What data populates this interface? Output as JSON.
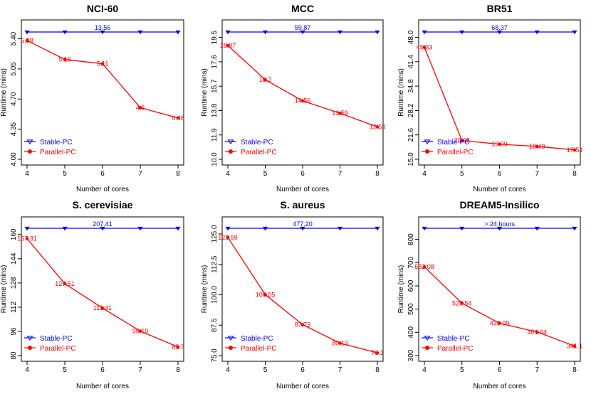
{
  "colors": {
    "stable": "#0000ff",
    "parallel": "#ff0000",
    "axis": "#000000"
  },
  "chart_data": [
    {
      "type": "line",
      "title": "NCI-60",
      "xlabel": "Number of cores",
      "ylabel": "Runtime (mins)",
      "x": [
        4,
        5,
        6,
        7,
        8
      ],
      "yticks": [
        "4.00",
        "4.35",
        "4.70",
        "5.05",
        "5.40"
      ],
      "ylim": [
        4.0,
        5.52
      ],
      "stable_value": 13.56,
      "stable_label": "13.56",
      "series": [
        {
          "name": "Parallel-PC",
          "values": [
            5.38,
            5.16,
            5.11,
            4.6,
            4.48
          ],
          "labels": [
            "5.38",
            "5.16",
            "5.11",
            "4.6",
            "4.48"
          ]
        }
      ],
      "legend": [
        "Stable-PC",
        "Parallel-PC"
      ],
      "legend_position": "bottom-left"
    },
    {
      "type": "line",
      "title": "MCC",
      "xlabel": "Number of cores",
      "ylabel": "Runtime (mins)",
      "x": [
        4,
        5,
        6,
        7,
        8
      ],
      "yticks": [
        "10.0",
        "11.9",
        "13.8",
        "15.7",
        "17.6",
        "19.5"
      ],
      "ylim": [
        10.0,
        20.2
      ],
      "stable_value": 59.87,
      "stable_label": "59.87",
      "series": [
        {
          "name": "Parallel-PC",
          "values": [
            18.87,
            16.2,
            14.56,
            13.59,
            12.53
          ],
          "labels": [
            "18.87",
            "16.2",
            "14.56",
            "13.59",
            "12.53"
          ]
        }
      ],
      "legend": [
        "Stable-PC",
        "Parallel-PC"
      ],
      "legend_position": "bottom-left"
    },
    {
      "type": "line",
      "title": "BR51",
      "xlabel": "Number of cores",
      "ylabel": "Runtime (mins)",
      "x": [
        4,
        5,
        6,
        7,
        8
      ],
      "yticks": [
        "15.0",
        "21.6",
        "28.2",
        "34.8",
        "41.4",
        "48.0"
      ],
      "ylim": [
        15.0,
        50.4
      ],
      "stable_value": 68.37,
      "stable_label": "68.37",
      "series": [
        {
          "name": "Parallel-PC",
          "values": [
            45.33,
            20.08,
            19.09,
            18.49,
            17.54
          ],
          "labels": [
            "45.33",
            "20.08",
            "19.09",
            "18.49",
            "17.54"
          ]
        }
      ],
      "legend": [
        "Stable-PC",
        "Parallel-PC"
      ],
      "legend_position": "bottom-left"
    },
    {
      "type": "line",
      "title": "S. cerevisiae",
      "xlabel": "Number of cores",
      "ylabel": "Runtime (mins)",
      "x": [
        4,
        5,
        6,
        7,
        8
      ],
      "yticks": [
        "80",
        "96",
        "112",
        "128",
        "144",
        "160"
      ],
      "ylim": [
        80,
        166
      ],
      "stable_value": 207.41,
      "stable_label": "207.41",
      "series": [
        {
          "name": "Parallel-PC",
          "values": [
            157.31,
            127.51,
            111.41,
            96.19,
            85.7
          ],
          "labels": [
            "157.31",
            "127.51",
            "111.41",
            "96.19",
            "85.7"
          ]
        }
      ],
      "legend": [
        "Stable-PC",
        "Parallel-PC"
      ],
      "legend_position": "bottom-left"
    },
    {
      "type": "line",
      "title": "S. aureus",
      "xlabel": "Number of cores",
      "ylabel": "Runtime (mins)",
      "x": [
        4,
        5,
        6,
        7,
        8
      ],
      "yticks": [
        "75.0",
        "87.5",
        "100.0",
        "112.5",
        "125.0"
      ],
      "ylim": [
        75.0,
        128.5
      ],
      "stable_value": 477.2,
      "stable_label": "477.20",
      "series": [
        {
          "name": "Parallel-PC",
          "values": [
            123.59,
            100.05,
            87.73,
            80.13,
            76.1
          ],
          "labels": [
            "123.59",
            "100.05",
            "87.73",
            "80.13",
            "76.1"
          ]
        }
      ],
      "legend": [
        "Stable-PC",
        "Parallel-PC"
      ],
      "legend_position": "bottom-left"
    },
    {
      "type": "line",
      "title": "DREAM5-Insilico",
      "xlabel": "Number of cores",
      "ylabel": "Runtime (mins)",
      "x": [
        4,
        5,
        6,
        7,
        8
      ],
      "yticks": [
        "300",
        "400",
        "500",
        "600",
        "700",
        "800"
      ],
      "ylim": [
        300,
        860
      ],
      "stable_value": "> 24 hours",
      "stable_label": "> 24 hours",
      "series": [
        {
          "name": "Parallel-PC",
          "values": [
            682.08,
            525.54,
            439.09,
            401.64,
            341.1
          ],
          "labels": [
            "682.08",
            "525.54",
            "439.09",
            "401.64",
            "341.1"
          ]
        }
      ],
      "legend": [
        "Stable-PC",
        "Parallel-PC"
      ],
      "legend_position": "bottom-left"
    }
  ]
}
